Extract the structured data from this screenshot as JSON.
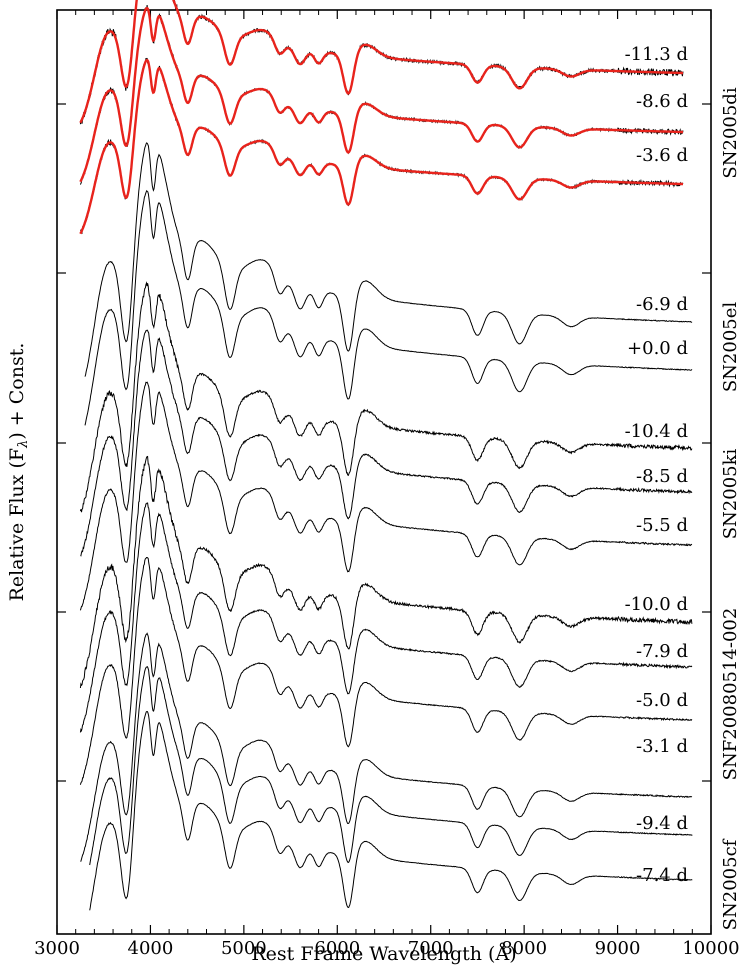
{
  "chart_data": {
    "type": "line",
    "xlabel": "Rest Frame Wavelength (Å)",
    "ylabel": "Relative Flux (F",
    "ylabel_sub": "λ",
    "ylabel_tail": ") + Const.",
    "xlim": [
      3000,
      10000
    ],
    "xticks": [
      3000,
      4000,
      5000,
      6000,
      7000,
      8000,
      9000,
      10000
    ],
    "colors": {
      "data": "#000000",
      "fit": "#e8231c"
    },
    "groups": [
      {
        "name": "SN2005di",
        "spectra": [
          {
            "phase": "-11.3 d",
            "noise": 0.9,
            "range": [
              3250,
              9700
            ],
            "fit": true
          },
          {
            "phase": "-8.6 d",
            "noise": 0.6,
            "range": [
              3250,
              9700
            ],
            "fit": true
          },
          {
            "phase": "-3.6 d",
            "noise": 0.6,
            "range": [
              3250,
              9700
            ],
            "fit": true
          }
        ]
      },
      {
        "name": "SN2005el",
        "spectra": [
          {
            "phase": "-6.9 d",
            "noise": 0.1,
            "range": [
              3300,
              9800
            ]
          },
          {
            "phase": "+0.0 d",
            "noise": 0.1,
            "range": [
              3300,
              9800
            ]
          }
        ]
      },
      {
        "name": "SN2005ki",
        "spectra": [
          {
            "phase": "-10.4 d",
            "noise": 0.5,
            "range": [
              3250,
              9800
            ]
          },
          {
            "phase": "-8.5 d",
            "noise": 0.35,
            "range": [
              3250,
              9800
            ]
          },
          {
            "phase": "-5.5 d",
            "noise": 0.2,
            "range": [
              3250,
              9800
            ]
          }
        ]
      },
      {
        "name": "SNF20080514-002",
        "spectra": [
          {
            "phase": "-10.0 d",
            "noise": 0.6,
            "range": [
              3250,
              9800
            ]
          },
          {
            "phase": "-7.9 d",
            "noise": 0.3,
            "range": [
              3250,
              9800
            ]
          },
          {
            "phase": "-5.0 d",
            "noise": 0.2,
            "range": [
              3250,
              9800
            ]
          },
          {
            "phase": "-3.1 d",
            "noise": 0.15,
            "range": [
              3250,
              9800
            ]
          }
        ]
      },
      {
        "name": "SN2005cf",
        "spectra": [
          {
            "phase": "-9.4 d",
            "noise": 0.12,
            "range": [
              3350,
              9800
            ]
          },
          {
            "phase": "-7.4 d",
            "noise": 0.12,
            "range": [
              3350,
              9800
            ]
          }
        ]
      }
    ]
  }
}
